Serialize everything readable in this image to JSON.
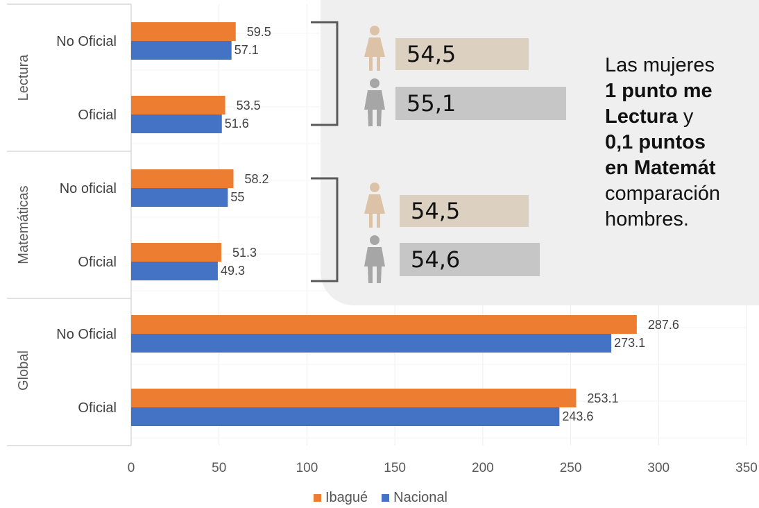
{
  "chart_data": {
    "type": "bar",
    "orientation": "horizontal",
    "groups": [
      {
        "name": "Lectura",
        "categories": [
          {
            "label": "No Oficial",
            "ibague": 59.5,
            "nacional": 57.1
          },
          {
            "label": "Oficial",
            "ibague": 53.5,
            "nacional": 51.6
          }
        ]
      },
      {
        "name": "Matemáticas",
        "categories": [
          {
            "label": "No oficial",
            "ibague": 58.2,
            "nacional": 55
          },
          {
            "label": "Oficial",
            "ibague": 51.3,
            "nacional": 49.3
          }
        ]
      },
      {
        "name": "Global",
        "categories": [
          {
            "label": "No Oficial",
            "ibague": 287.6,
            "nacional": 273.1
          },
          {
            "label": "Oficial",
            "ibague": 253.1,
            "nacional": 243.6
          }
        ]
      }
    ],
    "series": [
      {
        "name": "Ibagué",
        "color": "#ed7d31"
      },
      {
        "name": "Nacional",
        "color": "#4472c4"
      }
    ],
    "xlim": [
      0,
      350
    ],
    "xticks": [
      0,
      50,
      100,
      150,
      200,
      250,
      300,
      350
    ],
    "grid": true,
    "legend": "bottom"
  },
  "gender": {
    "lectura": {
      "female": "54,5",
      "male": "55,1"
    },
    "matematicas": {
      "female": "54,5",
      "male": "54,6"
    },
    "female_value": 54.5
  },
  "narrative": {
    "line1": "Las mujeres",
    "line2": "1  punto me",
    "line3_bold": "Lectura",
    "line3_rest": " y",
    "line4": "0,1 puntos",
    "line5": "en Matemát",
    "line6": "comparación",
    "line7": "hombres."
  },
  "colors": {
    "female_icon": "#dcc3a8",
    "male_icon": "#a6a6a6"
  }
}
